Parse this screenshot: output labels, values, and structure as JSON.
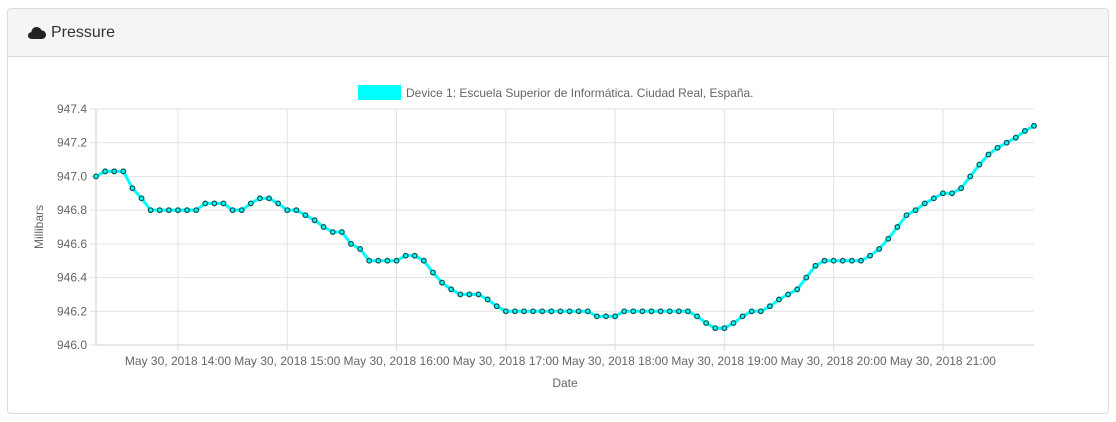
{
  "panel": {
    "title": "Pressure",
    "icon": "cloud-icon"
  },
  "chart_data": {
    "type": "line",
    "title": "",
    "xlabel": "Date",
    "ylabel": "Millibars",
    "ylim": [
      946.0,
      947.4
    ],
    "yticks": [
      "946.0",
      "946.2",
      "946.4",
      "946.6",
      "946.8",
      "947.0",
      "947.2",
      "947.4"
    ],
    "xticks": [
      "May 30, 2018 14:00",
      "May 30, 2018 15:00",
      "May 30, 2018 16:00",
      "May 30, 2018 17:00",
      "May 30, 2018 18:00",
      "May 30, 2018 19:00",
      "May 30, 2018 20:00",
      "May 30, 2018 21:00"
    ],
    "x_start": "May 30, 2018 13:15",
    "x_step_minutes": 5,
    "grid": true,
    "legend_position": "top",
    "series": [
      {
        "name": "Device 1: Escuela Superior de Informática. Ciudad Real, España.",
        "color": "#00ffff",
        "point_color": "#0a5c5c",
        "values": [
          947.0,
          947.03,
          947.03,
          947.03,
          946.93,
          946.87,
          946.8,
          946.8,
          946.8,
          946.8,
          946.8,
          946.8,
          946.84,
          946.84,
          946.84,
          946.8,
          946.8,
          946.84,
          946.87,
          946.87,
          946.84,
          946.8,
          946.8,
          946.77,
          946.74,
          946.7,
          946.67,
          946.67,
          946.6,
          946.57,
          946.5,
          946.5,
          946.5,
          946.5,
          946.53,
          946.53,
          946.5,
          946.43,
          946.37,
          946.33,
          946.3,
          946.3,
          946.3,
          946.27,
          946.23,
          946.2,
          946.2,
          946.2,
          946.2,
          946.2,
          946.2,
          946.2,
          946.2,
          946.2,
          946.2,
          946.17,
          946.17,
          946.17,
          946.2,
          946.2,
          946.2,
          946.2,
          946.2,
          946.2,
          946.2,
          946.2,
          946.17,
          946.13,
          946.1,
          946.1,
          946.13,
          946.17,
          946.2,
          946.2,
          946.23,
          946.27,
          946.3,
          946.33,
          946.4,
          946.47,
          946.5,
          946.5,
          946.5,
          946.5,
          946.5,
          946.53,
          946.57,
          946.63,
          946.7,
          946.77,
          946.8,
          946.84,
          946.87,
          946.9,
          946.9,
          946.93,
          947.0,
          947.07,
          947.13,
          947.17,
          947.2,
          947.23,
          947.27,
          947.3
        ]
      }
    ]
  }
}
